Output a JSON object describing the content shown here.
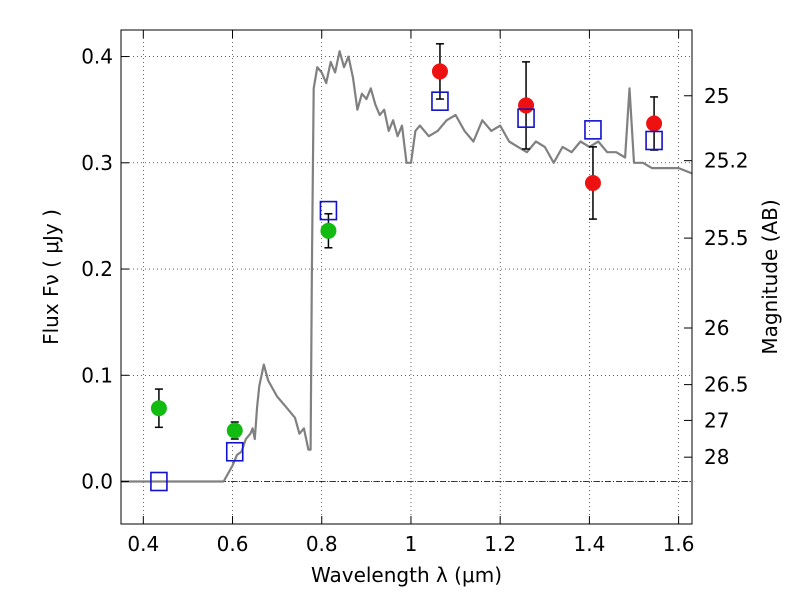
{
  "chart_data": {
    "type": "scatter",
    "xlabel": "Wavelength  λ (μm)",
    "ylabel": "Flux  Fν  ( μJy )",
    "y2label": "Magnitude (AB)",
    "xlim": [
      0.35,
      1.63
    ],
    "ylim": [
      -0.04,
      0.425
    ],
    "xticks": [
      0.4,
      0.6,
      0.8,
      1.0,
      1.2,
      1.4,
      1.6
    ],
    "xtick_labels": [
      "0.4",
      "0.6",
      "0.8",
      "1",
      "1.2",
      "1.4",
      "1.6"
    ],
    "yticks": [
      0.0,
      0.1,
      0.2,
      0.3,
      0.4
    ],
    "ytick_labels": [
      "0.0",
      "0.1",
      "0.2",
      "0.3",
      "0.4"
    ],
    "mag_ticks": [
      {
        "label": "25",
        "flux": 0.3631
      },
      {
        "label": "25.2",
        "flux": 0.302
      },
      {
        "label": "25.5",
        "flux": 0.2291
      },
      {
        "label": "26",
        "flux": 0.1445
      },
      {
        "label": "26.5",
        "flux": 0.0912
      },
      {
        "label": "27",
        "flux": 0.0575
      },
      {
        "label": "28",
        "flux": 0.0229
      }
    ],
    "grid": true,
    "zero_line": true,
    "colors": {
      "template": "#808080",
      "green": "#11bb11",
      "red": "#ee1111",
      "model": "#1111cc",
      "errorbar": "#000000"
    },
    "series": [
      {
        "style": "line",
        "x": [
          0.35,
          0.58,
          0.6,
          0.61,
          0.62,
          0.63,
          0.64,
          0.645,
          0.65,
          0.655,
          0.66,
          0.67,
          0.68,
          0.7,
          0.72,
          0.74,
          0.75,
          0.76,
          0.77,
          0.775,
          0.778,
          0.782,
          0.79,
          0.8,
          0.81,
          0.82,
          0.83,
          0.84,
          0.85,
          0.86,
          0.87,
          0.88,
          0.89,
          0.9,
          0.91,
          0.92,
          0.93,
          0.94,
          0.95,
          0.96,
          0.97,
          0.98,
          0.99,
          1.0,
          1.01,
          1.02,
          1.04,
          1.06,
          1.08,
          1.1,
          1.12,
          1.14,
          1.16,
          1.18,
          1.2,
          1.22,
          1.24,
          1.26,
          1.28,
          1.3,
          1.32,
          1.34,
          1.36,
          1.38,
          1.4,
          1.42,
          1.44,
          1.46,
          1.48,
          1.49,
          1.5,
          1.52,
          1.54,
          1.56,
          1.58,
          1.6,
          1.63
        ],
        "y": [
          0.0,
          0.0,
          0.015,
          0.025,
          0.028,
          0.04,
          0.045,
          0.05,
          0.04,
          0.07,
          0.09,
          0.11,
          0.095,
          0.08,
          0.07,
          0.06,
          0.045,
          0.05,
          0.03,
          0.03,
          0.2,
          0.37,
          0.39,
          0.385,
          0.375,
          0.395,
          0.385,
          0.405,
          0.39,
          0.4,
          0.38,
          0.35,
          0.365,
          0.36,
          0.37,
          0.355,
          0.345,
          0.35,
          0.33,
          0.34,
          0.325,
          0.335,
          0.3,
          0.3,
          0.33,
          0.335,
          0.325,
          0.33,
          0.34,
          0.345,
          0.33,
          0.32,
          0.34,
          0.33,
          0.335,
          0.32,
          0.315,
          0.31,
          0.32,
          0.315,
          0.3,
          0.315,
          0.31,
          0.32,
          0.315,
          0.32,
          0.31,
          0.31,
          0.305,
          0.37,
          0.3,
          0.3,
          0.295,
          0.295,
          0.295,
          0.295,
          0.29
        ]
      },
      {
        "style": "marker-circle-green",
        "x": [
          0.435,
          0.605,
          0.815
        ],
        "y": [
          0.069,
          0.048,
          0.236
        ],
        "yerr": [
          0.018,
          0.008,
          0.016
        ]
      },
      {
        "style": "marker-circle-red",
        "x": [
          1.065,
          1.258,
          1.408,
          1.545
        ],
        "y": [
          0.386,
          0.354,
          0.281,
          0.337
        ],
        "yerr": [
          0.026,
          0.041,
          0.034,
          0.025
        ]
      },
      {
        "style": "marker-square-blue",
        "x": [
          0.435,
          0.605,
          0.815,
          1.065,
          1.258,
          1.408,
          1.545
        ],
        "y": [
          0.0,
          0.028,
          0.255,
          0.358,
          0.342,
          0.331,
          0.321
        ]
      }
    ]
  }
}
